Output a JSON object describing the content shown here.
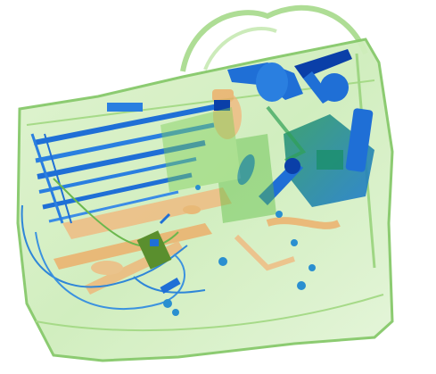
{
  "image": {
    "kind": "x-ray baggage scan",
    "palette": {
      "background": "#ffffff",
      "organic": "#f0a860",
      "mixed": "#7fd05a",
      "inorganic": "#1f6fd6",
      "dense": "#0a3fa8"
    }
  }
}
